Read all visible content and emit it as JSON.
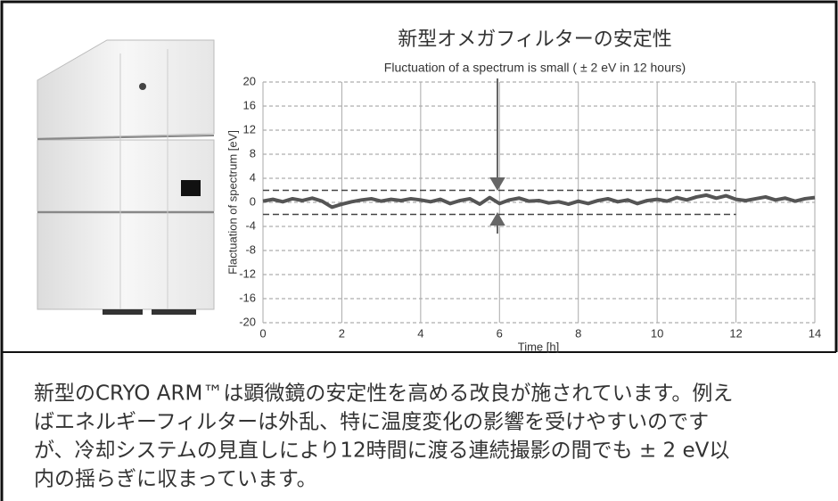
{
  "chart_data": {
    "type": "line",
    "title": "新型オメガフィルターの安定性",
    "annotation": "Fluctuation of a spectrum is small ( ± 2 eV in 12 hours)",
    "x_label": "Time [h]",
    "y_label": "Flactuation of spectrum [eV]",
    "x": [
      0,
      0.25,
      0.5,
      0.75,
      1,
      1.25,
      1.5,
      1.75,
      2,
      2.25,
      2.5,
      2.75,
      3,
      3.25,
      3.5,
      3.75,
      4,
      4.25,
      4.5,
      4.75,
      5,
      5.25,
      5.5,
      5.75,
      6,
      6.25,
      6.5,
      6.75,
      7,
      7.25,
      7.5,
      7.75,
      8,
      8.25,
      8.5,
      8.75,
      9,
      9.25,
      9.5,
      9.75,
      10,
      10.25,
      10.5,
      10.75,
      11,
      11.25,
      11.5,
      11.75,
      12,
      12.25,
      12.5,
      12.75,
      13,
      13.25,
      13.5,
      13.75,
      14
    ],
    "series": [
      {
        "color": "#555555",
        "values": [
          0.2,
          0.5,
          0.1,
          0.6,
          0.3,
          0.7,
          0.2,
          -0.8,
          -0.3,
          0.1,
          0.4,
          0.6,
          0.2,
          0.5,
          0.3,
          0.6,
          0.4,
          0.1,
          0.5,
          -0.2,
          0.3,
          0.6,
          -0.3,
          0.8,
          -0.2,
          0.4,
          0.7,
          0.2,
          0.3,
          -0.1,
          0.1,
          -0.3,
          0.2,
          -0.2,
          0.3,
          0.6,
          0.1,
          0.4,
          -0.2,
          0.3,
          0.5,
          0.2,
          0.8,
          0.4,
          0.9,
          1.2,
          0.7,
          1.1,
          0.5,
          0.3,
          0.6,
          0.9,
          0.4,
          0.7,
          0.2,
          0.6,
          0.8
        ]
      }
    ],
    "xlim": [
      0,
      14
    ],
    "xticks": [
      0,
      2,
      4,
      6,
      8,
      10,
      12,
      14
    ],
    "ylim": [
      -20,
      20
    ],
    "yticks": [
      -20,
      -16,
      -12,
      -8,
      -4,
      0,
      4,
      8,
      12,
      16,
      20
    ],
    "hlines": [
      2,
      -2
    ],
    "hline_xmax": 12,
    "grid": true
  },
  "paragraph": {
    "lines": [
      "新型のCRYO ARM™は顕微鏡の安定性を高める改良が施されています。例え",
      "ばエネルギーフィルターは外乱、特に温度変化の影響を受けやすいのです",
      "が、冷却システムの見直しにより12時間に渡る連続撮影の間でも ± 2 eV以",
      "内の揺らぎに収まっています。"
    ]
  }
}
